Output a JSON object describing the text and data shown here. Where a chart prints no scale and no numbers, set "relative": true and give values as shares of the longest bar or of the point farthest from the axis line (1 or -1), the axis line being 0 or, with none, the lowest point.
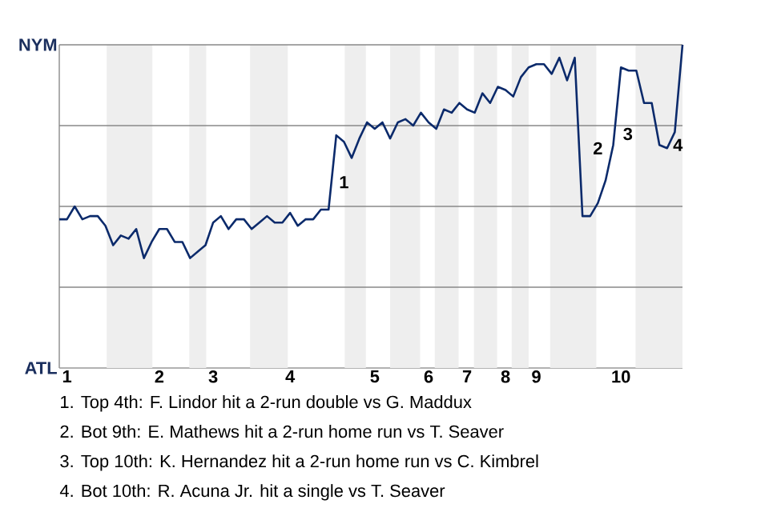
{
  "chart_data": {
    "type": "line",
    "color": "#0b2a6b",
    "line_style": "solid",
    "relative": true,
    "categories": [
      null,
      "1",
      null,
      null,
      null,
      null,
      null,
      null,
      null,
      null,
      null,
      null,
      null,
      "2",
      null,
      null,
      null,
      null,
      null,
      null,
      "3",
      null,
      null,
      null,
      null,
      null,
      null,
      null,
      null,
      null,
      "4",
      null,
      null,
      null,
      null,
      null,
      null,
      null,
      null,
      null,
      null,
      "5",
      null,
      null,
      null,
      null,
      null,
      null,
      "6",
      null,
      null,
      null,
      null,
      "7",
      null,
      null,
      null,
      null,
      "8",
      null,
      null,
      null,
      "9",
      null,
      null,
      null,
      null,
      null,
      null,
      null,
      null,
      null,
      null,
      "10",
      null,
      null,
      null,
      null,
      null,
      null,
      null,
      null
    ],
    "values": [
      0.46,
      0.46,
      0.5,
      0.46,
      0.47,
      0.47,
      0.44,
      0.38,
      0.41,
      0.4,
      0.43,
      0.34,
      0.39,
      0.43,
      0.43,
      0.39,
      0.39,
      0.34,
      0.36,
      0.38,
      0.45,
      0.47,
      0.43,
      0.46,
      0.46,
      0.43,
      0.45,
      0.47,
      0.45,
      0.45,
      0.48,
      0.44,
      0.46,
      0.46,
      0.49,
      0.49,
      0.72,
      0.7,
      0.65,
      0.71,
      0.76,
      0.74,
      0.76,
      0.71,
      0.76,
      0.77,
      0.75,
      0.79,
      0.76,
      0.74,
      0.8,
      0.79,
      0.82,
      0.8,
      0.79,
      0.85,
      0.82,
      0.87,
      0.86,
      0.84,
      0.9,
      0.93,
      0.94,
      0.94,
      0.91,
      0.96,
      0.89,
      0.96,
      0.47,
      0.47,
      0.51,
      0.58,
      0.69,
      0.93,
      0.92,
      0.92,
      0.82,
      0.82,
      0.69,
      0.68,
      0.73,
      1
    ],
    "ref_lines": [
      {
        "axis": "y",
        "value": 0.25,
        "color": "#888888"
      },
      {
        "axis": "y",
        "value": 0.5,
        "color": "#888888"
      },
      {
        "axis": "y",
        "value": 0.75,
        "color": "#888888"
      },
      {
        "axis": "y",
        "value": 1,
        "color": "#888888"
      }
    ],
    "annotations": [
      "NYM",
      "ATL",
      "1",
      "2",
      "3",
      "4",
      "1. Top 4th: F. Lindor hit a 2-run double vs G. Maddux",
      "2. Bot 9th: E. Mathews hit a 2-run home run vs T. Seaver",
      "3. Top 10th: K. Hernandez hit a 2-run home run vs C. Kimbrel",
      "4. Bot 10th: R. Acuna Jr. hit a single vs T. Seaver"
    ]
  }
}
